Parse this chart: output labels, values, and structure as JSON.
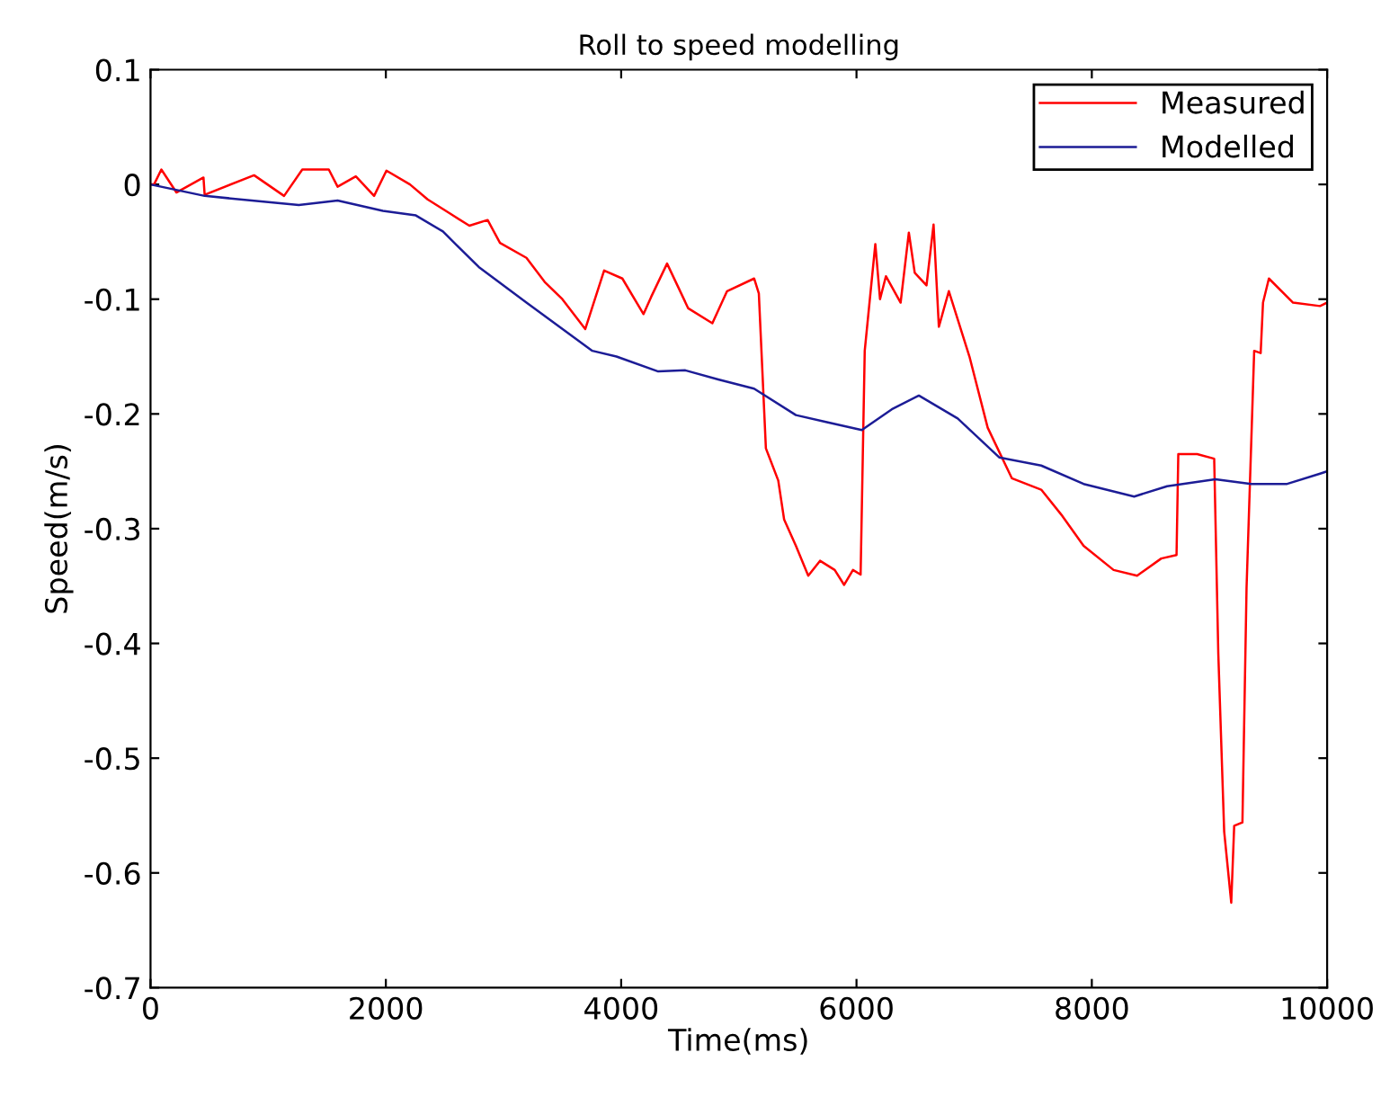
{
  "chart_data": {
    "type": "line",
    "title": "Roll to speed modelling",
    "xlabel": "Time(ms)",
    "ylabel": "Speed(m/s)",
    "xlim": [
      0,
      10000
    ],
    "xticks": [
      0,
      2000,
      4000,
      6000,
      8000,
      10000
    ],
    "ylim": [
      -0.7,
      0.1
    ],
    "yticks": [
      {
        "value": -0.7,
        "label": "-0.7"
      },
      {
        "value": -0.6,
        "label": "-0.6"
      },
      {
        "value": -0.5,
        "label": "-0.5"
      },
      {
        "value": -0.4,
        "label": "-0.4"
      },
      {
        "value": -0.3,
        "label": "-0.3"
      },
      {
        "value": -0.2,
        "label": "-0.2"
      },
      {
        "value": -0.1,
        "label": "-0.1"
      },
      {
        "value": 0,
        "label": "0"
      },
      {
        "value": 0.1,
        "label": "0.1"
      }
    ],
    "grid": false,
    "legend": "top right",
    "line_style": "solid",
    "marker": "none",
    "series": [
      {
        "name": "Measured",
        "color": "#ff0000",
        "x": [
          0,
          30,
          92,
          220,
          450,
          460,
          880,
          1135,
          1290,
          1515,
          1590,
          1745,
          1900,
          2005,
          2205,
          2355,
          2540,
          2710,
          2865,
          2970,
          3195,
          3350,
          3500,
          3695,
          3855,
          4010,
          4190,
          4255,
          4390,
          4570,
          4775,
          4900,
          5130,
          5170,
          5230,
          5335,
          5385,
          5485,
          5590,
          5690,
          5815,
          5895,
          5970,
          6035,
          6070,
          6160,
          6200,
          6250,
          6375,
          6445,
          6495,
          6595,
          6655,
          6700,
          6785,
          6960,
          7115,
          7320,
          7570,
          7750,
          7930,
          8185,
          8385,
          8590,
          8720,
          8735,
          8895,
          9040,
          9075,
          9125,
          9185,
          9210,
          9280,
          9315,
          9380,
          9435,
          9455,
          9505,
          9710,
          9940,
          10000
        ],
        "values": [
          0.0,
          0.0,
          0.013,
          -0.007,
          0.006,
          -0.009,
          0.008,
          -0.01,
          0.013,
          0.013,
          -0.002,
          0.007,
          -0.01,
          0.012,
          0.0,
          -0.013,
          -0.025,
          -0.036,
          -0.031,
          -0.051,
          -0.064,
          -0.085,
          -0.1,
          -0.126,
          -0.075,
          -0.082,
          -0.113,
          -0.098,
          -0.069,
          -0.108,
          -0.121,
          -0.093,
          -0.082,
          -0.095,
          -0.23,
          -0.258,
          -0.292,
          -0.315,
          -0.341,
          -0.328,
          -0.336,
          -0.349,
          -0.336,
          -0.34,
          -0.145,
          -0.052,
          -0.1,
          -0.08,
          -0.103,
          -0.042,
          -0.077,
          -0.088,
          -0.035,
          -0.124,
          -0.093,
          -0.15,
          -0.212,
          -0.256,
          -0.266,
          -0.289,
          -0.315,
          -0.336,
          -0.341,
          -0.326,
          -0.323,
          -0.235,
          -0.235,
          -0.239,
          -0.409,
          -0.564,
          -0.626,
          -0.559,
          -0.556,
          -0.352,
          -0.145,
          -0.147,
          -0.103,
          -0.082,
          -0.103,
          -0.106,
          -0.103
        ]
      },
      {
        "name": "Modelled",
        "color": "#1c1c96",
        "x": [
          0,
          460,
          1260,
          1590,
          1975,
          2255,
          2485,
          2790,
          3195,
          3755,
          3960,
          4315,
          4545,
          4825,
          5130,
          5485,
          5740,
          6045,
          6300,
          6530,
          6860,
          7215,
          7570,
          7930,
          8360,
          8640,
          9050,
          9355,
          9660,
          9940,
          10000
        ],
        "values": [
          0.0,
          -0.01,
          -0.018,
          -0.014,
          -0.023,
          -0.027,
          -0.041,
          -0.072,
          -0.103,
          -0.145,
          -0.15,
          -0.163,
          -0.162,
          -0.17,
          -0.178,
          -0.201,
          -0.207,
          -0.214,
          -0.196,
          -0.184,
          -0.204,
          -0.238,
          -0.245,
          -0.261,
          -0.272,
          -0.263,
          -0.257,
          -0.261,
          -0.261,
          -0.252,
          -0.25
        ]
      }
    ]
  }
}
